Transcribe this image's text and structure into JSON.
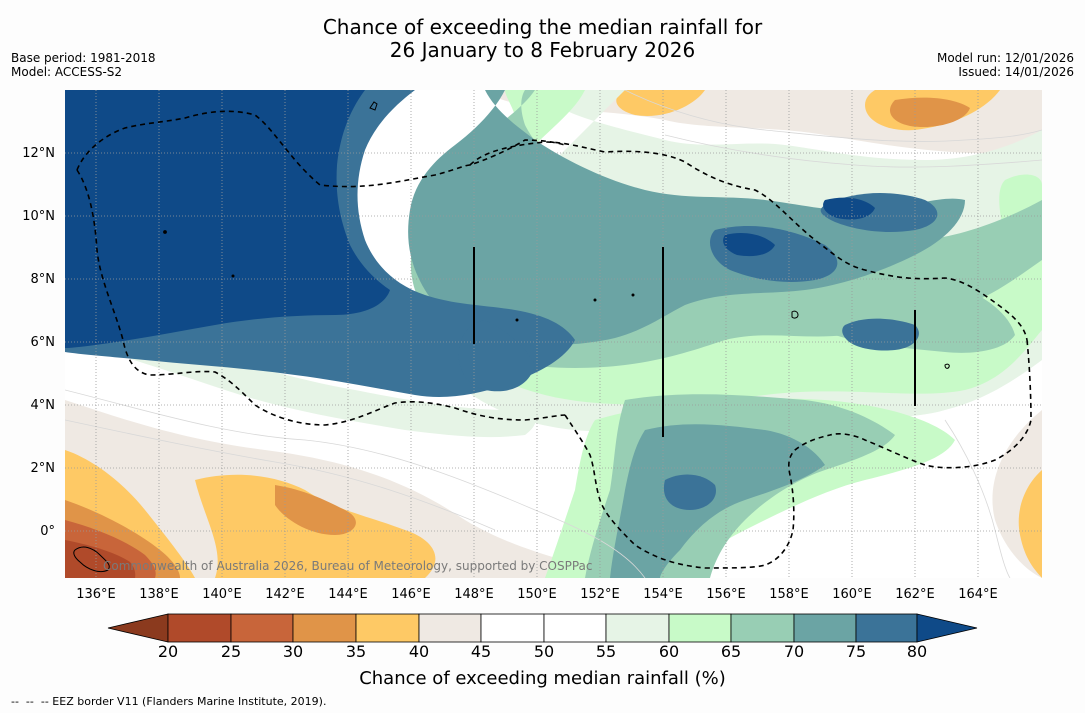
{
  "title": {
    "line1": "Chance of exceeding the median rainfall for",
    "line2": "26 January to 8 February 2026"
  },
  "meta_left": {
    "base_period": "Base period: 1981-2018",
    "model": "Model: ACCESS-S2"
  },
  "meta_right": {
    "model_run": "Model run: 12/01/2026",
    "issued": "Issued: 14/01/2026"
  },
  "map": {
    "copyright": "Commonwealth of Australia 2026, Bureau of Meteorology, supported by COSPPac",
    "lat_ticks": [
      "12°N",
      "10°N",
      "8°N",
      "6°N",
      "4°N",
      "2°N",
      "0°"
    ],
    "lon_ticks": [
      "136°E",
      "138°E",
      "140°E",
      "142°E",
      "144°E",
      "146°E",
      "148°E",
      "150°E",
      "152°E",
      "154°E",
      "156°E",
      "158°E",
      "160°E",
      "162°E",
      "164°E"
    ],
    "lon_range": [
      135,
      166
    ],
    "lat_range": [
      -1.5,
      14
    ]
  },
  "legend": {
    "bounds": [
      "20",
      "25",
      "30",
      "35",
      "40",
      "45",
      "50",
      "55",
      "60",
      "65",
      "70",
      "75",
      "80"
    ],
    "colors": [
      "#8b3a1e",
      "#b04a2a",
      "#c8653a",
      "#e09448",
      "#fec965",
      "#efe9e3",
      "#ffffff",
      "#ffffff",
      "#e6f4e6",
      "#c8fac8",
      "#98ceb4",
      "#6ba4a4",
      "#3b7398",
      "#0f4a88"
    ],
    "title": "Chance of exceeding median rainfall (%)"
  },
  "footnote": "--  --  -- EEZ border V11 (Flanders Marine Institute, 2019)."
}
